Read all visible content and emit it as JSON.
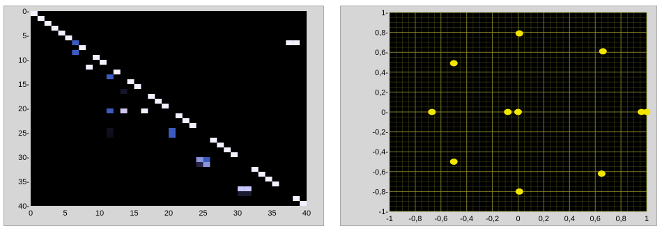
{
  "chart_data": [
    {
      "type": "heatmap",
      "xlim": [
        0,
        40
      ],
      "ylim": [
        0,
        40
      ],
      "y_inverted": true,
      "x_ticks": [
        "0",
        "5",
        "10",
        "15",
        "20",
        "25",
        "30",
        "35",
        "40"
      ],
      "y_ticks": [
        "0-",
        "5-",
        "10-",
        "15-",
        "20-",
        "25-",
        "30-",
        "35-",
        "40-"
      ],
      "background_color": "#000000",
      "cells": [
        {
          "x": 0,
          "y": 0,
          "c": "#f4f0ff"
        },
        {
          "x": 1,
          "y": 1,
          "c": "#f4f0ff"
        },
        {
          "x": 2,
          "y": 2,
          "c": "#f4f0ff"
        },
        {
          "x": 3,
          "y": 3,
          "c": "#f4f0ff"
        },
        {
          "x": 4,
          "y": 4,
          "c": "#f4f0ff"
        },
        {
          "x": 5,
          "y": 5,
          "c": "#f4f0ff"
        },
        {
          "x": 6,
          "y": 6,
          "c": "#3c5bc0"
        },
        {
          "x": 7,
          "y": 7,
          "c": "#f4f0ff"
        },
        {
          "x": 6,
          "y": 8,
          "c": "#3c5bc0"
        },
        {
          "x": 9,
          "y": 9,
          "c": "#f4f0ff"
        },
        {
          "x": 10,
          "y": 10,
          "c": "#f4f0ff"
        },
        {
          "x": 8,
          "y": 11,
          "c": "#f4f0ff"
        },
        {
          "x": 12,
          "y": 12,
          "c": "#f4f0ff"
        },
        {
          "x": 11,
          "y": 13,
          "c": "#3c5bc0"
        },
        {
          "x": 14,
          "y": 14,
          "c": "#f4f0ff"
        },
        {
          "x": 15,
          "y": 15,
          "c": "#f4f0ff"
        },
        {
          "x": 13,
          "y": 16,
          "c": "#15152a"
        },
        {
          "x": 17,
          "y": 17,
          "c": "#f4f0ff"
        },
        {
          "x": 18,
          "y": 18,
          "c": "#f4f0ff"
        },
        {
          "x": 19,
          "y": 19,
          "c": "#f4f0ff"
        },
        {
          "x": 11,
          "y": 20,
          "c": "#3c5bc0"
        },
        {
          "x": 13,
          "y": 20,
          "c": "#cfc8ec"
        },
        {
          "x": 16,
          "y": 20,
          "c": "#f4f0ff"
        },
        {
          "x": 21,
          "y": 21,
          "c": "#f4f0ff"
        },
        {
          "x": 22,
          "y": 22,
          "c": "#f4f0ff"
        },
        {
          "x": 23,
          "y": 23,
          "c": "#f4f0ff"
        },
        {
          "x": 11,
          "y": 24,
          "c": "#0f0f1e"
        },
        {
          "x": 20,
          "y": 24,
          "c": "#3c5bc0"
        },
        {
          "x": 11,
          "y": 25,
          "c": "#0d0d1a"
        },
        {
          "x": 20,
          "y": 25,
          "c": "#3c5bc0"
        },
        {
          "x": 26,
          "y": 26,
          "c": "#f4f0ff"
        },
        {
          "x": 27,
          "y": 27,
          "c": "#f4f0ff"
        },
        {
          "x": 28,
          "y": 28,
          "c": "#f4f0ff"
        },
        {
          "x": 29,
          "y": 29,
          "c": "#f4f0ff"
        },
        {
          "x": 24,
          "y": 30,
          "c": "#8c95db"
        },
        {
          "x": 25,
          "y": 30,
          "c": "#3c5bc0"
        },
        {
          "x": 24,
          "y": 31,
          "c": "#26264a"
        },
        {
          "x": 25,
          "y": 31,
          "c": "#8c95db"
        },
        {
          "x": 32,
          "y": 32,
          "c": "#f4f0ff"
        },
        {
          "x": 33,
          "y": 33,
          "c": "#f4f0ff"
        },
        {
          "x": 34,
          "y": 34,
          "c": "#f4f0ff"
        },
        {
          "x": 35,
          "y": 35,
          "c": "#f4f0ff"
        },
        {
          "x": 30,
          "y": 36,
          "c": "#c8c8ff"
        },
        {
          "x": 31,
          "y": 36,
          "c": "#c8c8ff"
        },
        {
          "x": 30,
          "y": 37,
          "c": "#1a1a30"
        },
        {
          "x": 31,
          "y": 37,
          "c": "#1a1a30"
        },
        {
          "x": 38,
          "y": 38,
          "c": "#f4f0ff"
        },
        {
          "x": 39,
          "y": 39,
          "c": "#f4f0ff"
        },
        {
          "x": 37,
          "y": 6,
          "c": "#f4f0ff"
        },
        {
          "x": 38,
          "y": 6,
          "c": "#f4f0ff"
        }
      ]
    },
    {
      "type": "scatter",
      "xlim": [
        -1,
        1
      ],
      "ylim": [
        -1,
        1
      ],
      "grid": true,
      "background_color": "#000000",
      "grid_color": "#8a8a2a",
      "marker_color": "#f2e600",
      "x_ticks": [
        "-1",
        "-0,8",
        "-0,6",
        "-0,4",
        "-0,2",
        "0",
        "0,2",
        "0,4",
        "0,6",
        "0,8",
        "1"
      ],
      "y_ticks": [
        "1-",
        "0,8-",
        "0,6-",
        "0,4-",
        "0,2-",
        "0-",
        "-0,2-",
        "-0,4-",
        "-0,6-",
        "-0,8-",
        "-1-"
      ],
      "points": [
        {
          "x": 0.01,
          "y": 0.79
        },
        {
          "x": 0.66,
          "y": 0.61
        },
        {
          "x": -0.5,
          "y": 0.49
        },
        {
          "x": -0.67,
          "y": 0.0
        },
        {
          "x": -0.08,
          "y": 0.0
        },
        {
          "x": 0.0,
          "y": 0.0
        },
        {
          "x": 0.96,
          "y": 0.0
        },
        {
          "x": 1.0,
          "y": 0.0
        },
        {
          "x": -0.5,
          "y": -0.5
        },
        {
          "x": 0.65,
          "y": -0.62
        },
        {
          "x": 0.01,
          "y": -0.8
        }
      ]
    }
  ]
}
